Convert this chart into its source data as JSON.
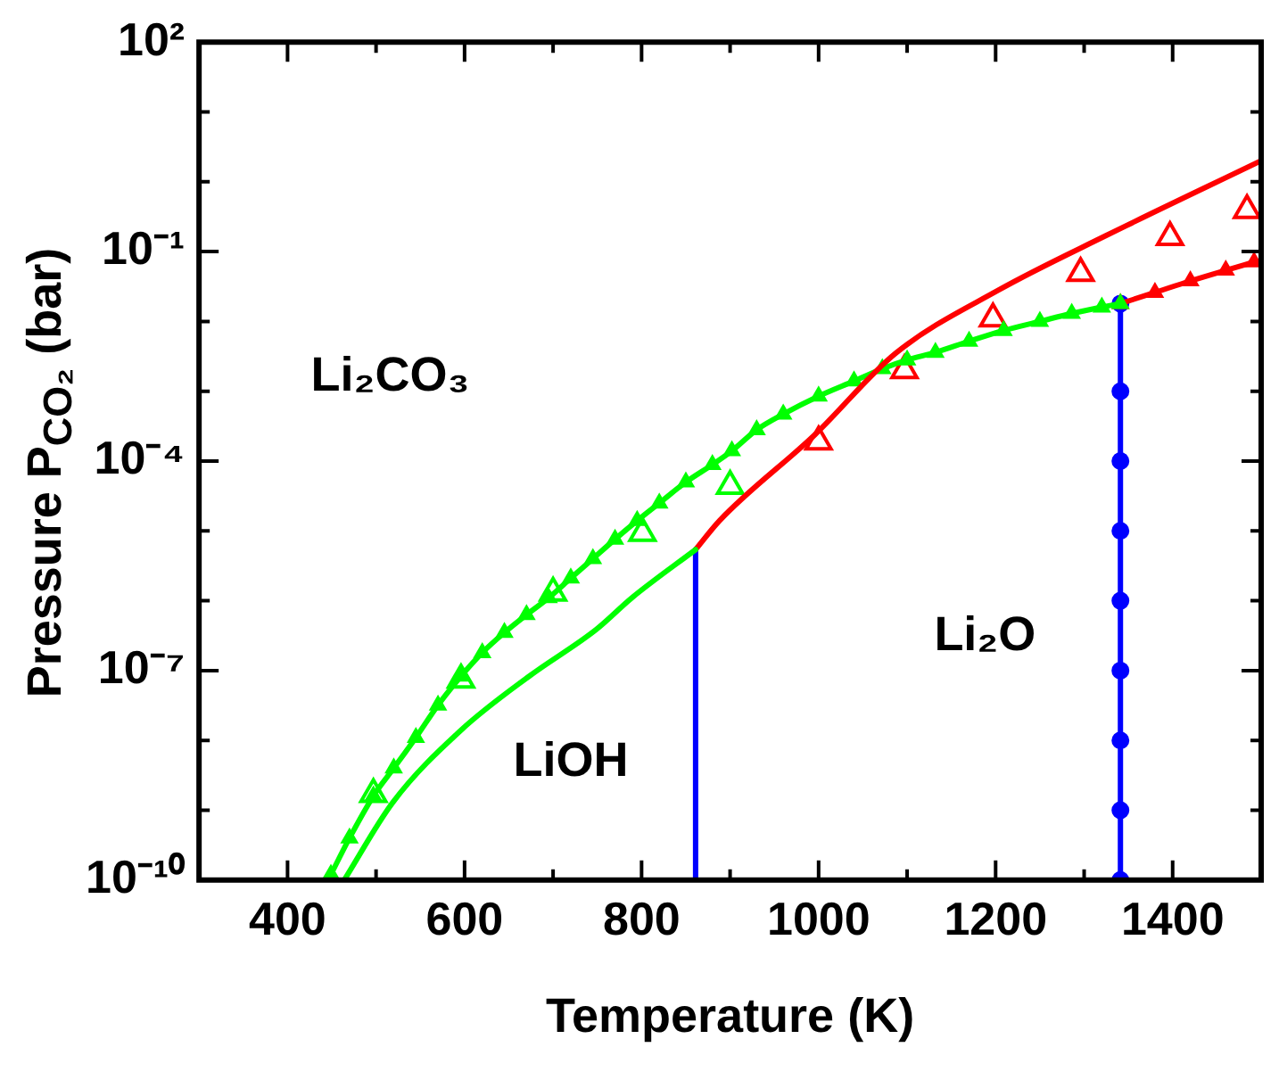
{
  "chart_data": {
    "type": "line",
    "xlabel": "Temperature (K)",
    "ylabel": "Pressure P$_{CO₂}$ (bar)",
    "log": "y",
    "legend": false,
    "xlim": [
      300,
      1500
    ],
    "xticks": [
      {
        "value": 300,
        "label": null
      },
      400,
      {
        "value": 500,
        "label": null
      },
      600,
      {
        "value": 700,
        "label": null
      },
      800,
      {
        "value": 900,
        "label": null
      },
      1000,
      {
        "value": 1100,
        "label": null
      },
      1200,
      {
        "value": 1300,
        "label": null
      },
      1400,
      {
        "value": 1500,
        "label": null
      }
    ],
    "ylim": [
      1e-10,
      100
    ],
    "yticks": [
      {
        "value": 1e-10,
        "label": "10⁻¹⁰"
      },
      {
        "value": 1e-09,
        "label": null
      },
      {
        "value": 1e-08,
        "label": null
      },
      {
        "value": 1e-07,
        "label": "10⁻⁷"
      },
      {
        "value": 1e-06,
        "label": null
      },
      {
        "value": 1e-05,
        "label": null
      },
      {
        "value": 0.0001,
        "label": "10⁻⁴"
      },
      {
        "value": 0.001,
        "label": null
      },
      {
        "value": 0.01,
        "label": null
      },
      {
        "value": 0.1,
        "label": "10⁻¹"
      },
      {
        "value": 1,
        "label": null
      },
      {
        "value": 10,
        "label": null
      },
      {
        "value": 100,
        "label": "10²"
      }
    ],
    "annotations": [
      "Li₂CO₃",
      "LiOH",
      "Li₂O"
    ],
    "series": [
      {
        "color": "#00ff00",
        "marker": "none",
        "x": [
          464,
          519,
          596,
          673,
          749,
          789,
          861
        ],
        "values": [
          1e-10,
          1.3e-09,
          1.4e-08,
          8.3e-08,
          3.9e-07,
          1.1e-06,
          5.4e-06
        ]
      },
      {
        "color": "#ff0000",
        "marker": "none",
        "x": [
          861,
          888,
          996,
          1087,
          1203,
          1325,
          1500
        ],
        "values": [
          5.4e-06,
          1.4e-05,
          0.00024,
          0.0035,
          0.028,
          0.17,
          2.0
        ]
      },
      {
        "color": "#00ff00",
        "marker": "triangle",
        "x": [
          449,
          470,
          497,
          520,
          545,
          570,
          596,
          620,
          645,
          670,
          695,
          720,
          745,
          770,
          795,
          820,
          850,
          880,
          902,
          930,
          960,
          1000,
          1040,
          1072,
          1100,
          1132,
          1170,
          1209,
          1250,
          1286,
          1320,
          1341
        ],
        "values": [
          1.2e-10,
          4e-10,
          1.6e-09,
          4e-09,
          1.1e-08,
          3.2e-08,
          8.3e-08,
          1.8e-07,
          3.5e-07,
          6.3e-07,
          1.1e-06,
          2.1e-06,
          4e-06,
          7.6e-06,
          1.4e-05,
          2.5e-05,
          5e-05,
          8.9e-05,
          0.00014,
          0.00028,
          0.00047,
          0.00085,
          0.0014,
          0.0021,
          0.0028,
          0.0036,
          0.0052,
          0.0074,
          0.01,
          0.013,
          0.016,
          0.018
        ]
      },
      {
        "color": "#ff0000",
        "marker": "triangle",
        "x": [
          1341,
          1380,
          1420,
          1460,
          1492
        ],
        "values": [
          0.018,
          0.026,
          0.038,
          0.054,
          0.071
        ]
      },
      {
        "type": "scatter",
        "color": "#ff0000",
        "marker": "triangle",
        "x": [
          1000,
          1097,
          1197,
          1296,
          1397,
          1484
        ],
        "values": [
          0.00019,
          0.002,
          0.011,
          0.049,
          0.16,
          0.39
        ]
      },
      {
        "type": "scatter",
        "color": "#00ff00",
        "marker": "triangle",
        "x": [
          497,
          596,
          700,
          801,
          900
        ],
        "values": [
          1.7e-09,
          7.4e-08,
          1.3e-06,
          9.3e-06,
          4.4e-05
        ]
      },
      {
        "color": "#0000ff",
        "marker": "none",
        "x": [
          861,
          861
        ],
        "values": [
          1e-10,
          5.4e-06
        ]
      },
      {
        "color": "#0000ff",
        "marker": "circle",
        "x": [
          1341,
          1341,
          1341,
          1341,
          1341,
          1341,
          1341,
          1341,
          1341
        ],
        "values": [
          1e-10,
          1e-09,
          1e-08,
          1e-07,
          1e-06,
          1e-05,
          0.0001,
          0.001,
          0.018
        ]
      }
    ]
  }
}
